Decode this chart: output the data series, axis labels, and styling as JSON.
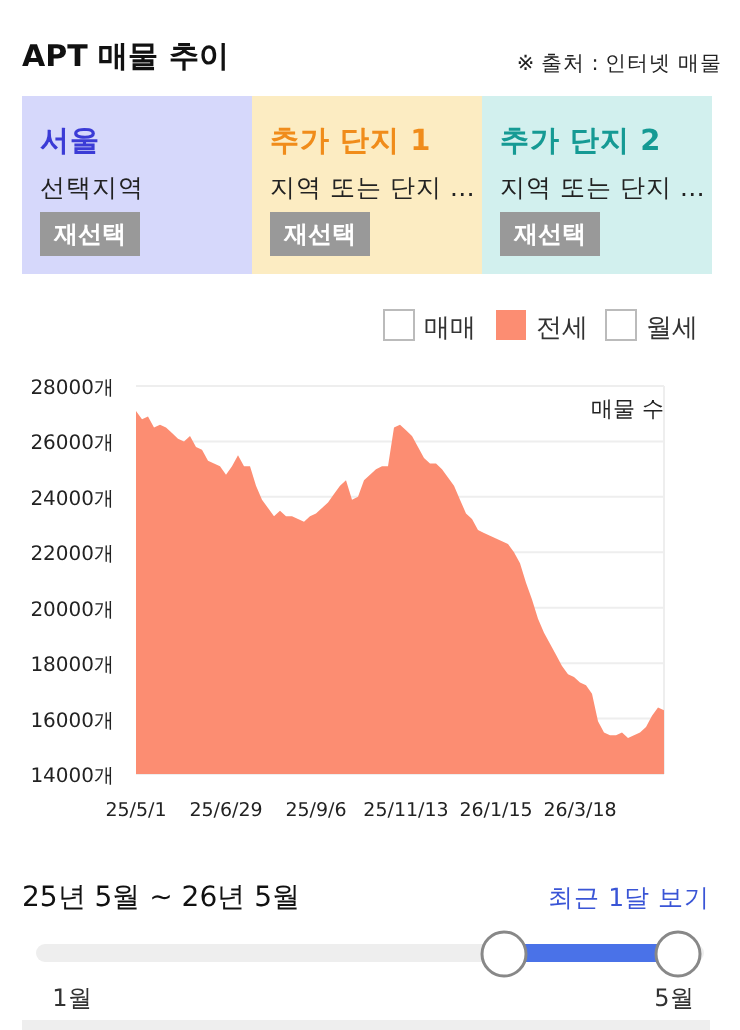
{
  "chart_data": {
    "type": "area",
    "title": "APT 매물 추이",
    "ylabel": "매물 수",
    "categories": [
      "25/5/1",
      null,
      null,
      null,
      null,
      null,
      null,
      null,
      null,
      null,
      null,
      null,
      null,
      null,
      null,
      "25/6/29",
      null,
      null,
      null,
      null,
      null,
      null,
      null,
      null,
      null,
      null,
      null,
      null,
      null,
      null,
      "25/9/6",
      null,
      null,
      null,
      null,
      null,
      null,
      null,
      null,
      null,
      null,
      null,
      null,
      null,
      null,
      "25/11/13",
      null,
      null,
      null,
      null,
      null,
      null,
      null,
      null,
      null,
      null,
      null,
      null,
      null,
      null,
      "26/1/15",
      null,
      null,
      null,
      null,
      null,
      null,
      null,
      null,
      null,
      null,
      null,
      null,
      null,
      "26/3/18",
      null,
      null,
      null,
      null,
      null,
      null,
      null,
      null,
      null,
      null,
      null,
      null,
      null,
      null
    ],
    "series": [
      {
        "name": "전세",
        "color": "#fc8d72",
        "values": [
          27100,
          26800,
          26900,
          26500,
          26600,
          26500,
          26300,
          26100,
          26000,
          26200,
          25800,
          25700,
          25300,
          25200,
          25100,
          24800,
          25100,
          25500,
          25100,
          25100,
          24400,
          23900,
          23600,
          23300,
          23500,
          23300,
          23300,
          23200,
          23100,
          23300,
          23400,
          23600,
          23800,
          24100,
          24400,
          24600,
          23900,
          24000,
          24600,
          24800,
          25000,
          25100,
          25100,
          26500,
          26600,
          26400,
          26200,
          25800,
          25400,
          25200,
          25200,
          25000,
          24700,
          24400,
          23900,
          23400,
          23200,
          22800,
          22700,
          22600,
          22500,
          22400,
          22300,
          22000,
          21600,
          20900,
          20300,
          19600,
          19100,
          18700,
          18300,
          17900,
          17600,
          17500,
          17300,
          17200,
          16900,
          15900,
          15500,
          15400,
          15400,
          15500,
          15300,
          15400,
          15500,
          15700,
          16100,
          16400,
          16300
        ]
      }
    ],
    "ylim": [
      14000,
      28000
    ],
    "yticks": [
      {
        "value": 14000,
        "label": "14000개"
      },
      {
        "value": 16000,
        "label": "16000개"
      },
      {
        "value": 18000,
        "label": "18000개"
      },
      {
        "value": 20000,
        "label": "20000개"
      },
      {
        "value": 22000,
        "label": "22000개"
      },
      {
        "value": 24000,
        "label": "24000개"
      },
      {
        "value": 26000,
        "label": "26000개"
      },
      {
        "value": 28000,
        "label": "28000개"
      }
    ],
    "grid": "y",
    "legend": "top right",
    "annotations": [
      "※ 출처 : 인터넷 매물",
      "서울",
      "선택지역",
      "재선택",
      "추가 단지 1",
      "지역 또는 단지 …",
      "재선택",
      "추가 단지 2",
      "지역 또는 단지 …",
      "재선택",
      "매매",
      "월세",
      "25년 5월 ~ 26년 5월",
      "최근 1달 보기",
      "1월",
      "5월"
    ]
  }
}
